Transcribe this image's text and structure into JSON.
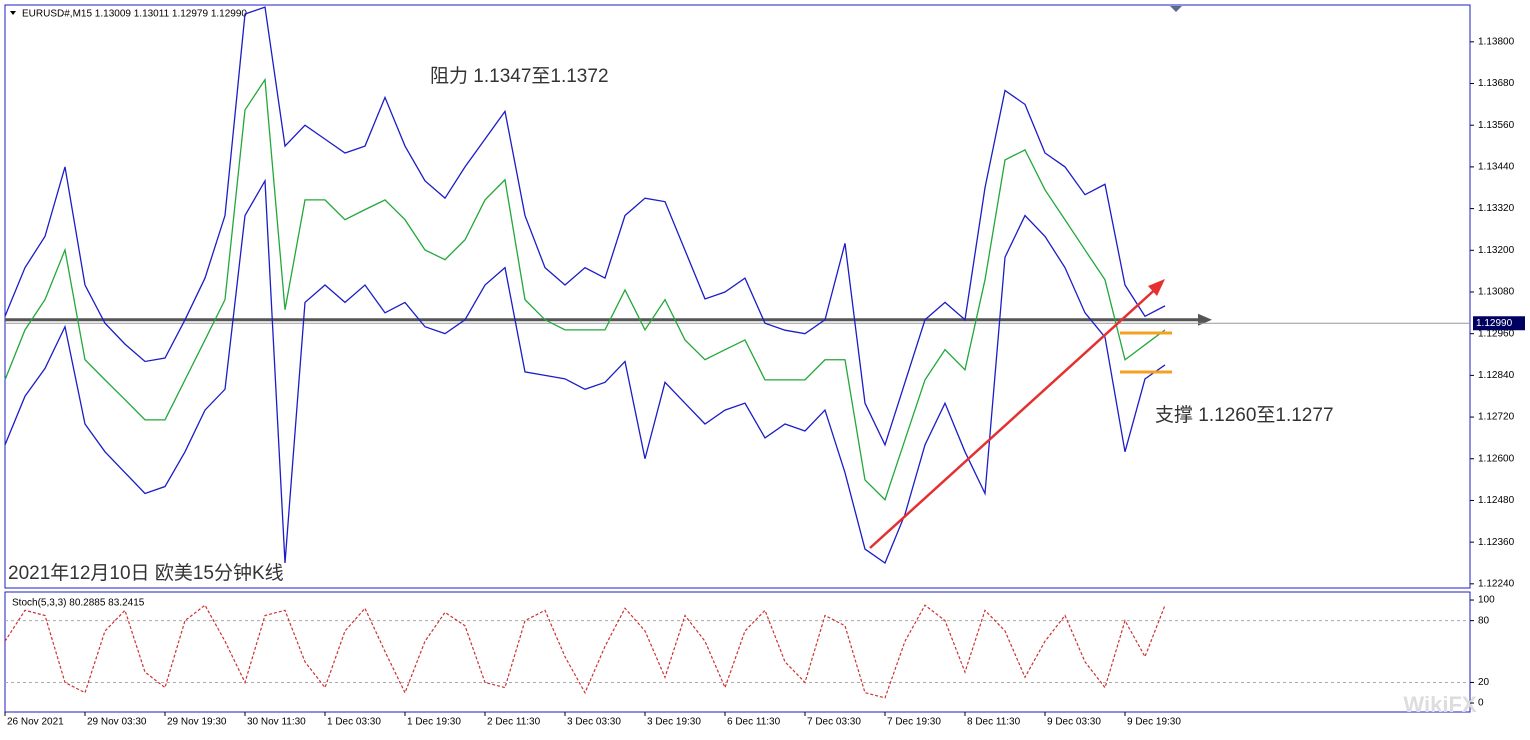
{
  "chart_data": [
    {
      "type": "line",
      "title": "EURUSD#,M15  1.13009 1.13011 1.12979 1.12990",
      "annotations": [
        "阻力 1.1347至1.1372",
        "支撑 1.1260至1.1277",
        "2021年12月10日 欧美15分钟K线"
      ],
      "watermark": "WikiFX",
      "categories": [
        "26 Nov 2021",
        null,
        null,
        null,
        "29 Nov 03:30",
        null,
        null,
        null,
        "29 Nov 19:30",
        null,
        null,
        null,
        "30 Nov 11:30",
        null,
        null,
        null,
        "1 Dec 03:30",
        null,
        null,
        null,
        "1 Dec 19:30",
        null,
        null,
        null,
        "2 Dec 11:30",
        null,
        null,
        null,
        "3 Dec 03:30",
        null,
        null,
        null,
        "3 Dec 19:30",
        null,
        null,
        null,
        "6 Dec 11:30",
        null,
        null,
        null,
        "7 Dec 03:30",
        null,
        null,
        null,
        "7 Dec 19:30",
        null,
        null,
        null,
        "8 Dec 11:30",
        null,
        null,
        null,
        "9 Dec 03:30",
        null,
        null,
        null,
        "9 Dec 19:30",
        null,
        null
      ],
      "series": [
        {
          "color": "#1c1cc8",
          "values": [
            1.1301,
            1.1315,
            1.1324,
            1.1344,
            1.131,
            1.1299,
            1.1293,
            1.1288,
            1.1289,
            1.13,
            1.1312,
            1.133,
            1.1388,
            1.139,
            1.135,
            1.1356,
            1.1352,
            1.1348,
            1.135,
            1.1364,
            1.135,
            1.134,
            1.1335,
            1.1344,
            1.1352,
            1.136,
            1.133,
            1.1315,
            1.131,
            1.1315,
            1.1312,
            1.133,
            1.1335,
            1.1334,
            1.132,
            1.1306,
            1.1308,
            1.1312,
            1.1299,
            1.1297,
            1.1296,
            1.13,
            1.1322,
            1.1276,
            1.1264,
            1.1282,
            1.13,
            1.1305,
            1.13,
            1.1338,
            1.1366,
            1.1362,
            1.1348,
            1.1344,
            1.1336,
            1.1339,
            1.131,
            1.1301,
            1.1304
          ]
        },
        {
          "color": "#22a83a",
          "values": [
            1.12827,
            1.12971,
            1.13058,
            1.13201,
            1.12885,
            1.12827,
            1.1277,
            1.12712,
            1.12712,
            1.12827,
            1.12942,
            1.13058,
            1.13604,
            1.13691,
            1.13029,
            1.13345,
            1.13345,
            1.13288,
            1.13317,
            1.13345,
            1.13288,
            1.13201,
            1.13173,
            1.1323,
            1.13345,
            1.13403,
            1.13058,
            1.13,
            1.12971,
            1.12971,
            1.12971,
            1.13086,
            1.12971,
            1.13058,
            1.12942,
            1.12885,
            1.12914,
            1.12942,
            1.12827,
            1.12827,
            1.12827,
            1.12885,
            1.12885,
            1.12539,
            1.12482,
            1.12655,
            1.12827,
            1.12914,
            1.12856,
            1.13115,
            1.1346,
            1.13489,
            1.13374,
            1.13288,
            1.13201,
            1.13115,
            1.12885,
            1.12928,
            1.12971
          ]
        },
        {
          "color": "#1c1cc8",
          "values": [
            1.1264,
            1.1278,
            1.1286,
            1.1298,
            1.127,
            1.1262,
            1.1256,
            1.125,
            1.1252,
            1.1262,
            1.1274,
            1.128,
            1.133,
            1.134,
            1.123,
            1.1305,
            1.131,
            1.1305,
            1.131,
            1.1302,
            1.1305,
            1.1298,
            1.1296,
            1.13,
            1.131,
            1.1315,
            1.1285,
            1.1284,
            1.1283,
            1.128,
            1.1282,
            1.1288,
            1.126,
            1.1282,
            1.1276,
            1.127,
            1.1274,
            1.1276,
            1.1266,
            1.127,
            1.1268,
            1.1274,
            1.1256,
            1.1234,
            1.123,
            1.1244,
            1.1264,
            1.1276,
            1.1262,
            1.125,
            1.1318,
            1.133,
            1.1324,
            1.1315,
            1.1302,
            1.1295,
            1.1262,
            1.1283,
            1.1287
          ]
        }
      ],
      "ylim": [
        1.13906,
        1.12228
      ],
      "yticks": [
        {
          "value": 1.138,
          "label": "1.13800"
        },
        {
          "value": 1.1368,
          "label": "1.13680"
        },
        {
          "value": 1.1356,
          "label": "1.13560"
        },
        {
          "value": 1.1344,
          "label": "1.13440"
        },
        {
          "value": 1.1332,
          "label": "1.13320"
        },
        {
          "value": 1.132,
          "label": "1.13200"
        },
        {
          "value": 1.1308,
          "label": "1.13080"
        },
        {
          "value": 1.1296,
          "label": "1.12960"
        },
        {
          "value": 1.1284,
          "label": "1.12840"
        },
        {
          "value": 1.1272,
          "label": "1.12720"
        },
        {
          "value": 1.126,
          "label": "1.12600"
        },
        {
          "value": 1.1248,
          "label": "1.12480"
        },
        {
          "value": 1.1236,
          "label": "1.12360"
        },
        {
          "value": 1.1224,
          "label": "1.12240"
        }
      ],
      "last_price": {
        "value": 1.1299,
        "label": "1.12990"
      },
      "level_line": 1.13
    },
    {
      "type": "line",
      "title": "Stoch(5,3,3) 80.2885 83.2415",
      "color": "#d03030",
      "values": [
        60,
        90,
        85,
        20,
        10,
        70,
        90,
        30,
        15,
        80,
        95,
        60,
        20,
        85,
        90,
        40,
        15,
        70,
        92,
        50,
        10,
        60,
        88,
        75,
        20,
        15,
        80,
        90,
        45,
        10,
        55,
        92,
        70,
        25,
        85,
        60,
        15,
        70,
        90,
        40,
        20,
        85,
        75,
        10,
        5,
        60,
        95,
        80,
        30,
        90,
        70,
        25,
        60,
        85,
        40,
        15,
        80,
        45,
        95
      ],
      "ylim": [
        -8.7,
        107.8
      ],
      "yticks": [
        100,
        80,
        20,
        0
      ],
      "levels": [
        80,
        20
      ]
    }
  ]
}
